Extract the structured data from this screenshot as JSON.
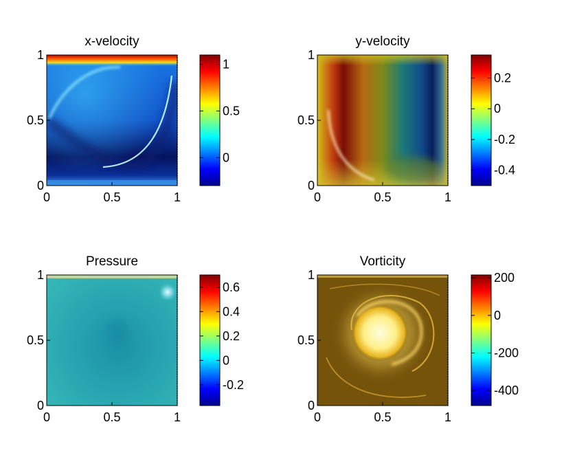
{
  "figure": {
    "layout": "2x2 subplots"
  },
  "chart_data": [
    {
      "type": "heatmap",
      "title": "x-velocity",
      "xticks": [
        "0",
        "0.5",
        "1"
      ],
      "yticks": [
        "0",
        "0.5",
        "1"
      ],
      "xlim": [
        0,
        1
      ],
      "ylim": [
        0,
        1
      ],
      "colorbar": {
        "range": [
          -0.3,
          1.1
        ],
        "ticks": [
          0,
          0.5,
          1
        ],
        "tick_labels": [
          "0",
          "0.5",
          "1"
        ]
      },
      "colormap": "jet"
    },
    {
      "type": "heatmap",
      "title": "y-velocity",
      "xticks": [
        "0",
        "0.5",
        "1"
      ],
      "yticks": [
        "0",
        "0.5",
        "1"
      ],
      "xlim": [
        0,
        1
      ],
      "ylim": [
        0,
        1
      ],
      "colorbar": {
        "range": [
          -0.5,
          0.35
        ],
        "ticks": [
          -0.4,
          -0.2,
          0,
          0.2
        ],
        "tick_labels": [
          "-0.4",
          "-0.2",
          "0",
          "0.2"
        ]
      },
      "colormap": "jet"
    },
    {
      "type": "heatmap",
      "title": "Pressure",
      "xticks": [
        "0",
        "0.5",
        "1"
      ],
      "yticks": [
        "0",
        "0.5",
        "1"
      ],
      "xlim": [
        0,
        1
      ],
      "ylim": [
        0,
        1
      ],
      "colorbar": {
        "range": [
          -0.37,
          0.7
        ],
        "ticks": [
          -0.2,
          0,
          0.2,
          0.4,
          0.6
        ],
        "tick_labels": [
          "-0.2",
          "0",
          "0.2",
          "0.4",
          "0.6"
        ]
      },
      "colormap": "jet"
    },
    {
      "type": "heatmap",
      "title": "Vorticity",
      "xticks": [
        "0",
        "0.5",
        "1"
      ],
      "yticks": [
        "0",
        "0.5",
        "1"
      ],
      "xlim": [
        0,
        1
      ],
      "ylim": [
        0,
        1
      ],
      "colorbar": {
        "range": [
          -480,
          215
        ],
        "ticks": [
          -400,
          -200,
          0,
          200
        ],
        "tick_labels": [
          "-400",
          "-200",
          "0",
          "200"
        ]
      },
      "colormap": "jet"
    }
  ]
}
